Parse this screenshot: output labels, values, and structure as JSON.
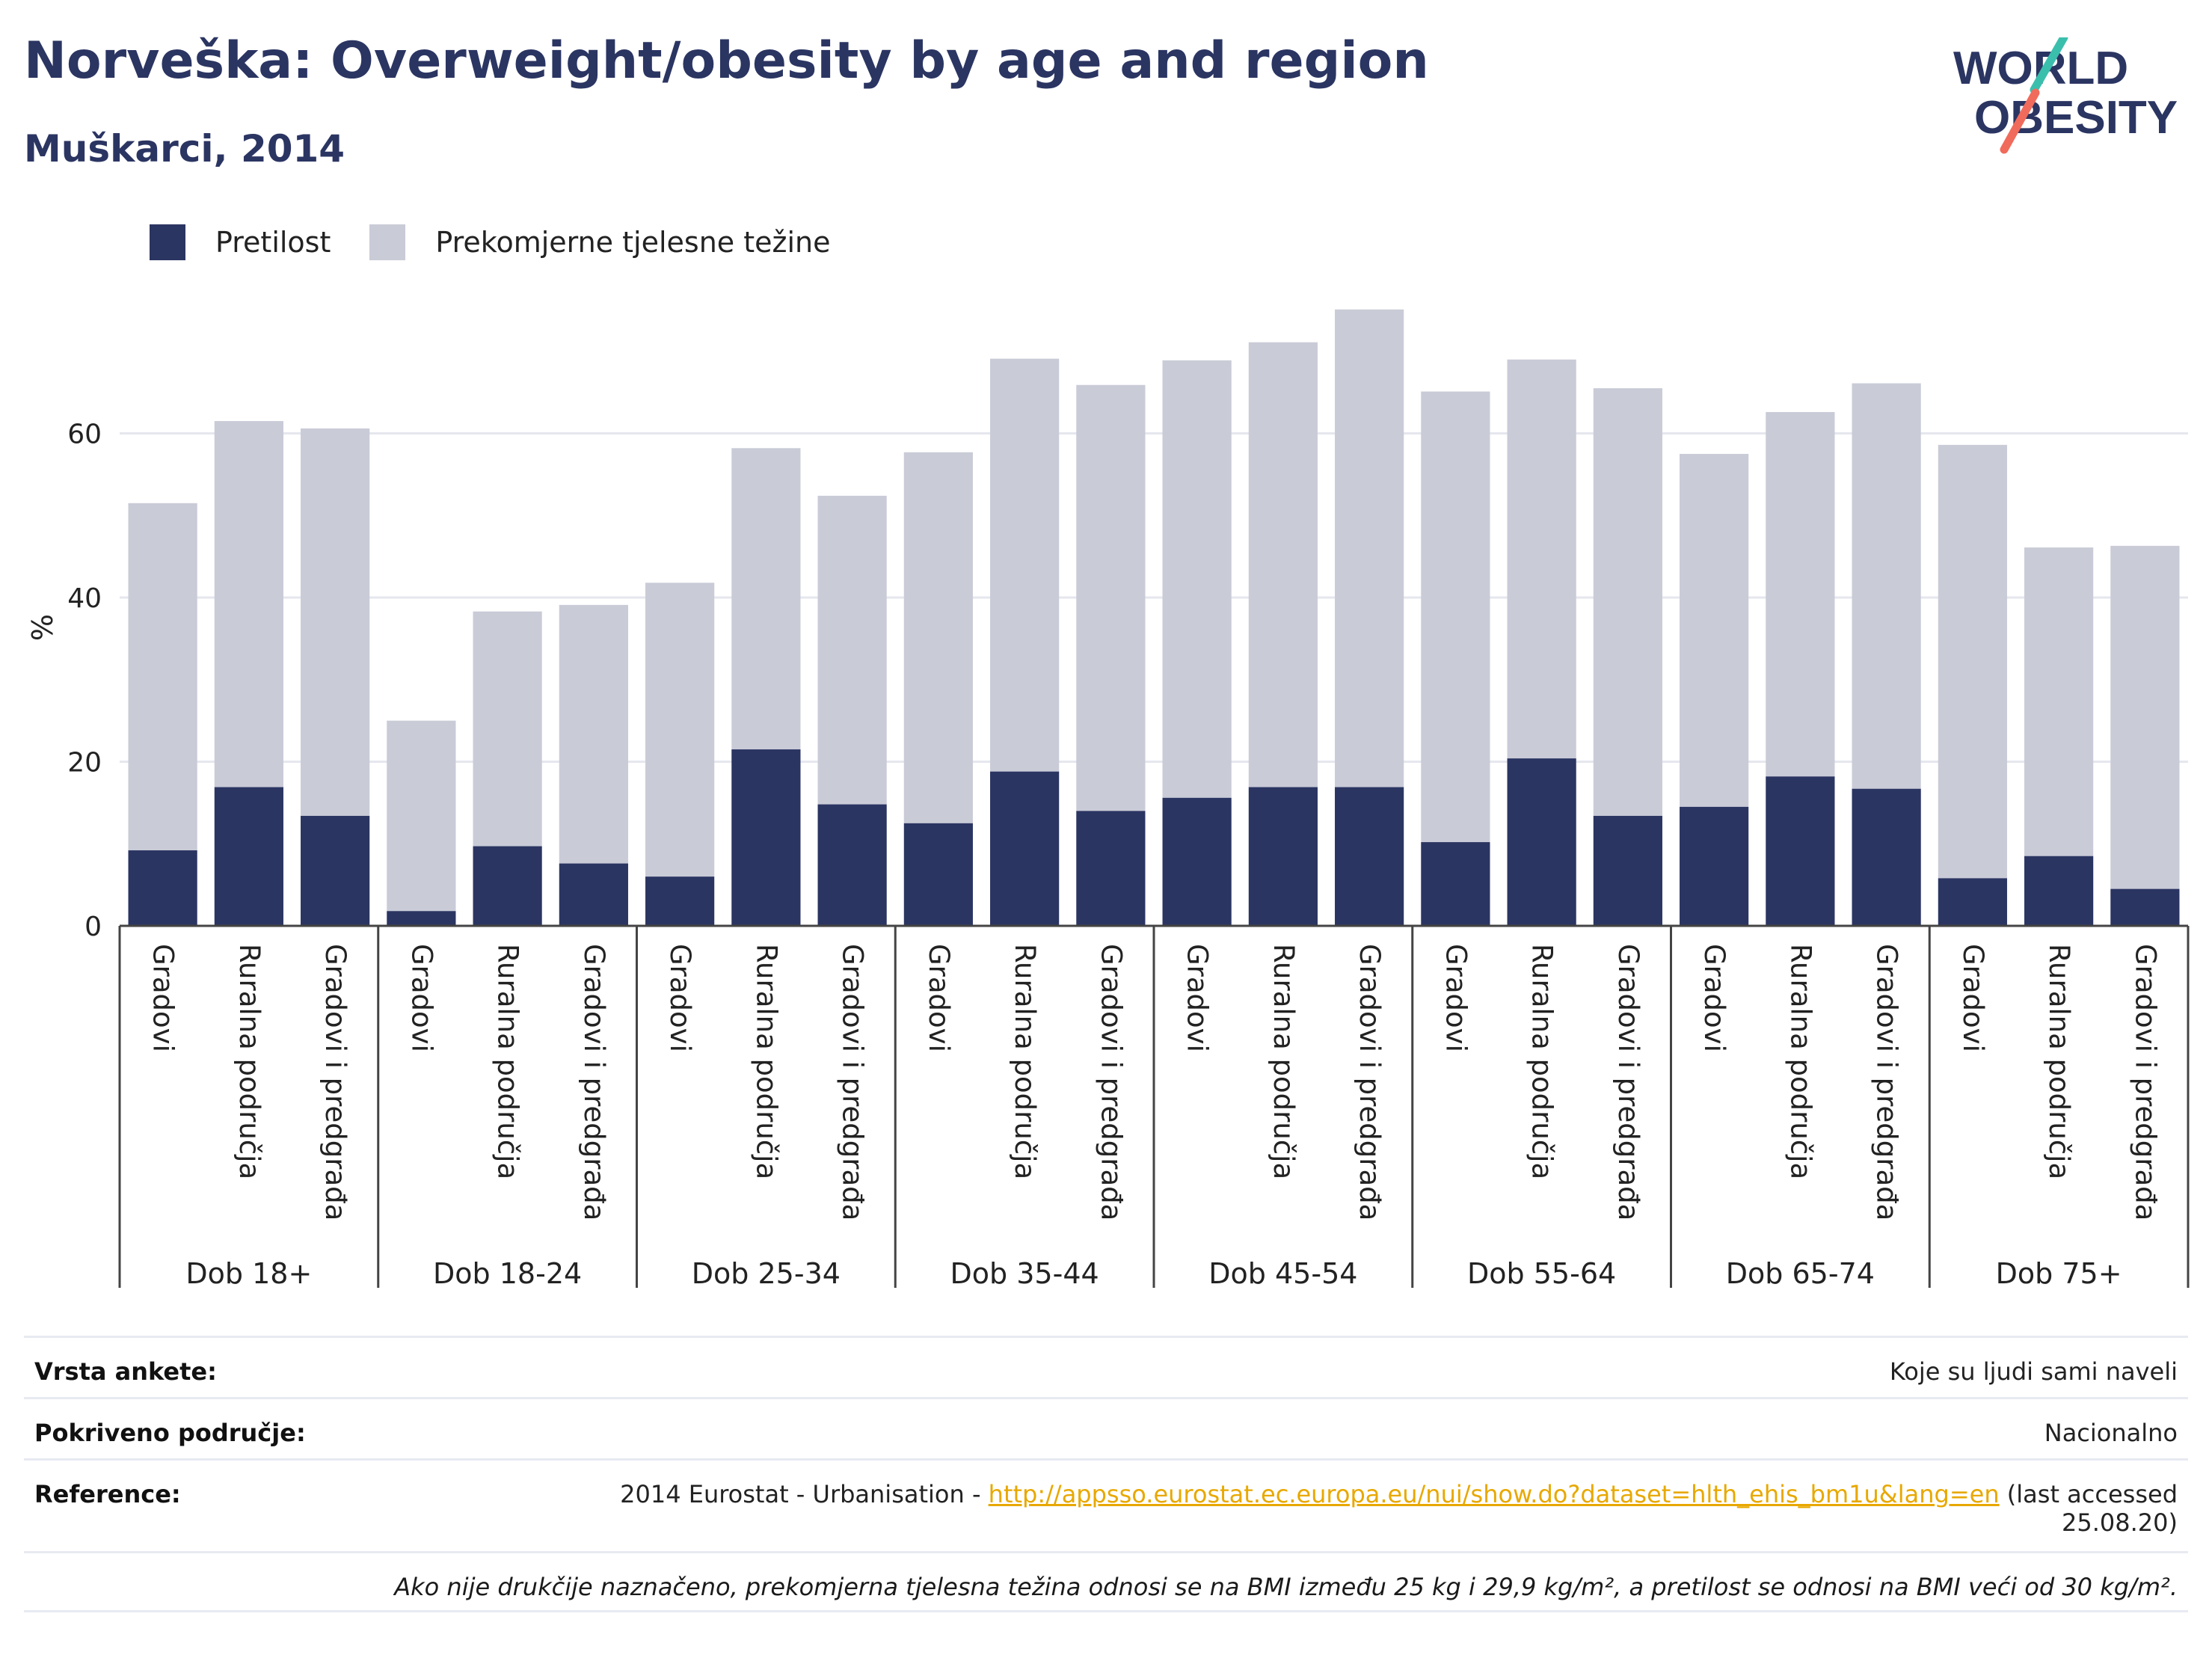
{
  "title": "Norveška: Overweight/obesity by age and region",
  "subtitle": "Muškarci, 2014",
  "logo": {
    "line1": "WORLD",
    "line2": "OBESITY"
  },
  "legend": {
    "obesity": "Pretilost",
    "overweight": "Prekomjerne tjelesne težine"
  },
  "colors": {
    "obesity": "#2b3562",
    "overweight": "#c9cbd7",
    "accent": "#2b3562",
    "logo_slash_top": "#3bbfad",
    "logo_slash_bottom": "#f06b5b",
    "link": "#e8a800"
  },
  "chart_data": {
    "type": "bar",
    "stacked": true,
    "ylabel": "%",
    "ylim": [
      0,
      80
    ],
    "yticks": [
      0,
      20,
      40,
      60
    ],
    "grid": true,
    "legend_position": "top-left",
    "groups": [
      "Dob 18+",
      "Dob 18-24",
      "Dob 25-34",
      "Dob 35-44",
      "Dob 45-54",
      "Dob 55-64",
      "Dob 65-74",
      "Dob 75+"
    ],
    "categories": [
      "Gradovi",
      "Ruralna područja",
      "Gradovi i predgrađa"
    ],
    "series": [
      {
        "name": "Pretilost",
        "values": [
          [
            9.2,
            16.9,
            13.4
          ],
          [
            1.8,
            9.7,
            7.6
          ],
          [
            6.0,
            21.5,
            14.8
          ],
          [
            12.5,
            18.8,
            14.0
          ],
          [
            15.6,
            16.9,
            16.9
          ],
          [
            10.2,
            20.4,
            13.4
          ],
          [
            14.5,
            18.2,
            16.7
          ],
          [
            5.8,
            8.5,
            4.5
          ]
        ]
      },
      {
        "name": "Prekomjerne tjelesne težine",
        "values": [
          [
            42.3,
            44.6,
            47.2
          ],
          [
            23.2,
            28.6,
            31.5
          ],
          [
            35.8,
            36.7,
            37.6
          ],
          [
            45.2,
            50.3,
            51.9
          ],
          [
            53.3,
            54.2,
            58.2
          ],
          [
            54.9,
            48.6,
            52.1
          ],
          [
            43.0,
            44.4,
            49.4
          ],
          [
            52.8,
            37.6,
            41.8
          ]
        ]
      }
    ]
  },
  "meta": {
    "survey_type_label": "Vrsta ankete:",
    "survey_type_value": "Koje su ljudi sami naveli",
    "coverage_label": "Pokriveno područje:",
    "coverage_value": "Nacionalno",
    "reference_label": "Reference:",
    "reference_prefix": "2014 Eurostat - Urbanisation - ",
    "reference_link": "http://appsso.eurostat.ec.europa.eu/nui/show.do?dataset=hlth_ehis_bm1u&lang=en",
    "reference_suffix": " (last accessed",
    "reference_date": "25.08.20)",
    "note": "Ako nije drukčije naznačeno, prekomjerna tjelesna težina odnosi se na BMI između 25 kg i 29,9 kg/m², a pretilost se odnosi na BMI veći od 30 kg/m²."
  }
}
